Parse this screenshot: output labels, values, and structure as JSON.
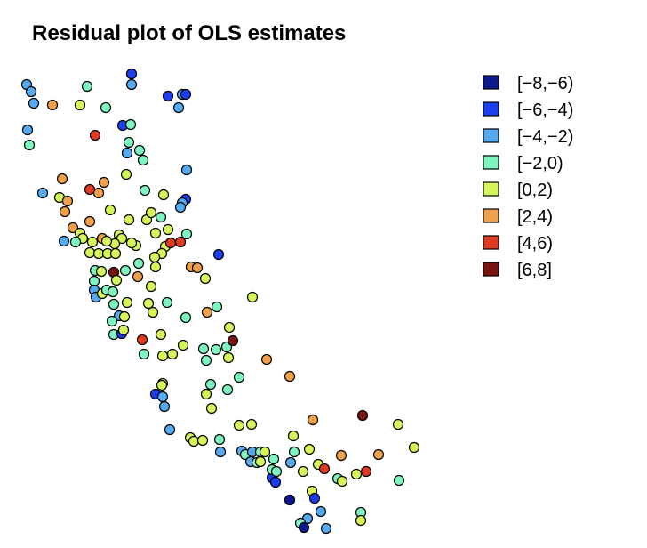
{
  "chart_data": {
    "type": "scatter",
    "title": "Residual plot of OLS estimates",
    "xlabel": "",
    "ylabel": "",
    "legend_position": "top-right",
    "legend": [
      {
        "label": "[−8,−6)",
        "color": "#0a1a8c"
      },
      {
        "label": "[−6,−4)",
        "color": "#1a3ef0"
      },
      {
        "label": "[−4,−2)",
        "color": "#55aaf0"
      },
      {
        "label": "[−2,0)",
        "color": "#7ef5c0"
      },
      {
        "label": "[0,2)",
        "color": "#d6f55a"
      },
      {
        "label": "[2,4)",
        "color": "#f0a04a"
      },
      {
        "label": "[4,6)",
        "color": "#e03a20"
      },
      {
        "label": "[6,8]",
        "color": "#7a1410"
      }
    ],
    "points": [
      [
        30,
        95,
        2
      ],
      [
        35,
        103,
        2
      ],
      [
        38,
        116,
        2
      ],
      [
        31,
        146,
        2
      ],
      [
        33,
        163,
        3
      ],
      [
        59,
        118,
        5
      ],
      [
        90,
        118,
        4
      ],
      [
        98,
        97,
        3
      ],
      [
        119,
        121,
        3
      ],
      [
        148,
        83,
        1
      ],
      [
        148,
        95,
        2
      ],
      [
        189,
        108,
        1
      ],
      [
        205,
        106,
        2
      ],
      [
        209,
        106,
        1
      ],
      [
        201,
        121,
        2
      ],
      [
        107,
        152,
        6
      ],
      [
        138,
        141,
        1
      ],
      [
        147,
        140,
        3
      ],
      [
        143,
        172,
        2
      ],
      [
        145,
        160,
        3
      ],
      [
        157,
        169,
        3
      ],
      [
        161,
        180,
        3
      ],
      [
        210,
        191,
        2
      ],
      [
        70,
        201,
        5
      ],
      [
        48,
        217,
        2
      ],
      [
        67,
        222,
        4
      ],
      [
        76,
        226,
        5
      ],
      [
        73,
        238,
        5
      ],
      [
        101,
        213,
        6
      ],
      [
        111,
        217,
        5
      ],
      [
        117,
        205,
        5
      ],
      [
        142,
        196,
        4
      ],
      [
        163,
        214,
        3
      ],
      [
        184,
        219,
        4
      ],
      [
        209,
        224,
        1
      ],
      [
        205,
        228,
        2
      ],
      [
        203,
        233,
        2
      ],
      [
        124,
        236,
        4
      ],
      [
        101,
        249,
        5
      ],
      [
        82,
        256,
        5
      ],
      [
        90,
        262,
        4
      ],
      [
        93,
        268,
        4
      ],
      [
        72,
        271,
        2
      ],
      [
        85,
        272,
        3
      ],
      [
        104,
        272,
        4
      ],
      [
        115,
        268,
        5
      ],
      [
        134,
        264,
        4
      ],
      [
        145,
        247,
        4
      ],
      [
        165,
        247,
        4
      ],
      [
        170,
        239,
        4
      ],
      [
        181,
        244,
        3
      ],
      [
        175,
        262,
        4
      ],
      [
        189,
        258,
        4
      ],
      [
        186,
        277,
        4
      ],
      [
        192,
        273,
        6
      ],
      [
        203,
        272,
        6
      ],
      [
        210,
        263,
        3
      ],
      [
        182,
        285,
        4
      ],
      [
        174,
        289,
        4
      ],
      [
        153,
        276,
        4
      ],
      [
        148,
        273,
        4
      ],
      [
        137,
        268,
        4
      ],
      [
        129,
        274,
        4
      ],
      [
        120,
        271,
        4
      ],
      [
        101,
        284,
        4
      ],
      [
        111,
        285,
        4
      ],
      [
        121,
        285,
        4
      ],
      [
        130,
        285,
        4
      ],
      [
        246,
        286,
        1
      ],
      [
        215,
        300,
        5
      ],
      [
        222,
        301,
        5
      ],
      [
        107,
        304,
        3
      ],
      [
        114,
        305,
        4
      ],
      [
        128,
        306,
        7
      ],
      [
        141,
        304,
        3
      ],
      [
        131,
        315,
        4
      ],
      [
        106,
        316,
        3
      ],
      [
        106,
        326,
        2
      ],
      [
        108,
        334,
        2
      ],
      [
        115,
        330,
        4
      ],
      [
        120,
        326,
        3
      ],
      [
        127,
        328,
        3
      ],
      [
        156,
        296,
        3
      ],
      [
        155,
        311,
        5
      ],
      [
        175,
        300,
        4
      ],
      [
        231,
        313,
        4
      ],
      [
        170,
        322,
        4
      ],
      [
        188,
        340,
        3
      ],
      [
        167,
        341,
        4
      ],
      [
        172,
        351,
        4
      ],
      [
        143,
        340,
        4
      ],
      [
        128,
        342,
        3
      ],
      [
        134,
        355,
        2
      ],
      [
        140,
        356,
        4
      ],
      [
        126,
        361,
        3
      ],
      [
        128,
        376,
        3
      ],
      [
        137,
        375,
        1
      ],
      [
        139,
        371,
        4
      ],
      [
        284,
        334,
        4
      ],
      [
        244,
        345,
        3
      ],
      [
        233,
        351,
        5
      ],
      [
        209,
        357,
        3
      ],
      [
        160,
        382,
        6
      ],
      [
        181,
        376,
        4
      ],
      [
        206,
        388,
        4
      ],
      [
        162,
        398,
        3
      ],
      [
        183,
        400,
        4
      ],
      [
        194,
        398,
        4
      ],
      [
        229,
        392,
        3
      ],
      [
        232,
        405,
        3
      ],
      [
        243,
        393,
        3
      ],
      [
        255,
        390,
        3
      ],
      [
        262,
        383,
        7
      ],
      [
        257,
        402,
        4
      ],
      [
        258,
        368,
        4
      ],
      [
        237,
        432,
        3
      ],
      [
        232,
        443,
        4
      ],
      [
        256,
        438,
        3
      ],
      [
        269,
        424,
        3
      ],
      [
        300,
        404,
        5
      ],
      [
        326,
        423,
        5
      ],
      [
        183,
        431,
        4
      ],
      [
        182,
        433,
        4
      ],
      [
        175,
        443,
        1
      ],
      [
        183,
        446,
        2
      ],
      [
        185,
        457,
        2
      ],
      [
        238,
        459,
        4
      ],
      [
        191,
        483,
        2
      ],
      [
        214,
        492,
        4
      ],
      [
        218,
        496,
        4
      ],
      [
        228,
        495,
        4
      ],
      [
        247,
        494,
        3
      ],
      [
        248,
        508,
        2
      ],
      [
        269,
        478,
        4
      ],
      [
        283,
        477,
        4
      ],
      [
        272,
        507,
        2
      ],
      [
        276,
        511,
        3
      ],
      [
        282,
        519,
        2
      ],
      [
        289,
        520,
        3
      ],
      [
        284,
        508,
        2
      ],
      [
        293,
        508,
        3
      ],
      [
        293,
        519,
        4
      ],
      [
        298,
        508,
        4
      ],
      [
        308,
        516,
        3
      ],
      [
        327,
        520,
        2
      ],
      [
        330,
        490,
        4
      ],
      [
        348,
        505,
        4
      ],
      [
        331,
        508,
        3
      ],
      [
        341,
        530,
        4
      ],
      [
        352,
        472,
        5
      ],
      [
        358,
        522,
        4
      ],
      [
        365,
        527,
        6
      ],
      [
        384,
        512,
        5
      ],
      [
        380,
        538,
        3
      ],
      [
        385,
        541,
        4
      ],
      [
        401,
        533,
        4
      ],
      [
        426,
        511,
        5
      ],
      [
        448,
        477,
        4
      ],
      [
        466,
        503,
        4
      ],
      [
        408,
        467,
        7
      ],
      [
        412,
        530,
        6
      ],
      [
        449,
        540,
        3
      ],
      [
        351,
        552,
        4
      ],
      [
        354,
        560,
        1
      ],
      [
        326,
        562,
        0
      ],
      [
        306,
        537,
        1
      ],
      [
        310,
        542,
        1
      ],
      [
        306,
        528,
        3
      ],
      [
        311,
        530,
        3
      ],
      [
        361,
        575,
        2
      ],
      [
        346,
        583,
        2
      ],
      [
        338,
        588,
        3
      ],
      [
        342,
        593,
        0
      ],
      [
        367,
        594,
        2
      ],
      [
        406,
        576,
        3
      ],
      [
        406,
        585,
        4
      ]
    ]
  }
}
